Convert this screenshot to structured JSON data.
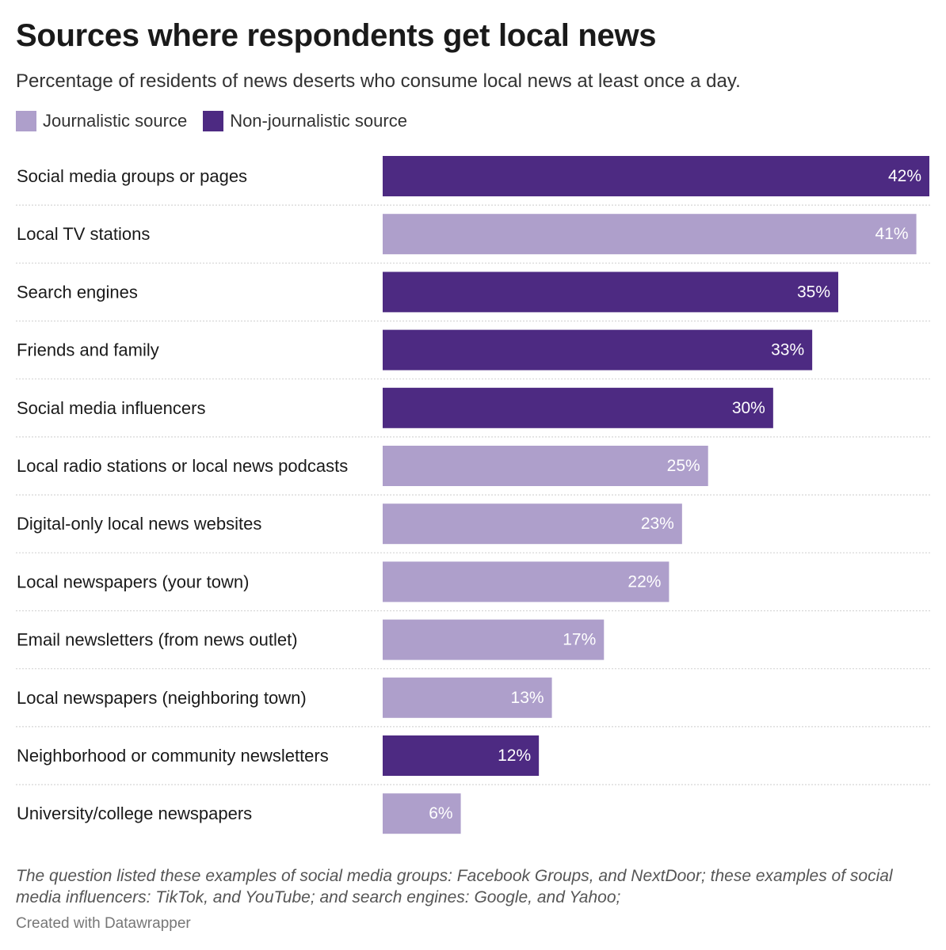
{
  "title": "Sources where respondents get local news",
  "subtitle": "Percentage of residents of news deserts who consume local news at least once a day.",
  "legend": [
    {
      "label": "Journalistic source",
      "color": "#ae9fcb"
    },
    {
      "label": "Non-journalistic source",
      "color": "#4d2a82"
    }
  ],
  "chart_data": {
    "type": "bar",
    "orientation": "horizontal",
    "xlim": [
      0,
      42
    ],
    "categories": [
      "Social media groups or pages",
      "Local TV stations",
      "Search engines",
      "Friends and family",
      "Social media influencers",
      "Local radio stations or local news podcasts",
      "Digital-only local news websites",
      "Local newspapers (your town)",
      "Email newsletters (from news outlet)",
      "Local newspapers (neighboring town)",
      "Neighborhood or community newsletters",
      "University/college newspapers"
    ],
    "values": [
      42,
      41,
      35,
      33,
      30,
      25,
      23,
      22,
      17,
      13,
      12,
      6
    ],
    "labels": [
      "42%",
      "41%",
      "35%",
      "33%",
      "30%",
      "25%",
      "23%",
      "22%",
      "17%",
      "13%",
      "12%",
      "6%"
    ],
    "source_type": [
      "Non-journalistic source",
      "Journalistic source",
      "Non-journalistic source",
      "Non-journalistic source",
      "Non-journalistic source",
      "Journalistic source",
      "Journalistic source",
      "Journalistic source",
      "Journalistic source",
      "Journalistic source",
      "Non-journalistic source",
      "Journalistic source"
    ]
  },
  "notes": "The question listed these examples of social media groups: Facebook Groups, and NextDoor; these examples of social media influencers: TikTok, and YouTube; and search engines: Google, and Yahoo;",
  "credit": "Created with Datawrapper"
}
